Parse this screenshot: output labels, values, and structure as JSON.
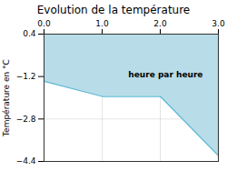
{
  "chart_data": {
    "type": "area",
    "title": "Evolution de la température",
    "ylabel": "Température en °C",
    "x": [
      0,
      1.0,
      2.0,
      3.0
    ],
    "series": [
      {
        "type": "area",
        "color": "#b8dce8",
        "fill_to": 0.4,
        "values": [
          -1.38,
          -1.95,
          -1.95,
          -4.18
        ]
      },
      {
        "type": "line",
        "color": "#5bb8d4",
        "values": [
          -1.38,
          -1.95,
          -1.95,
          -4.18
        ]
      }
    ],
    "xlim": [
      0,
      3
    ],
    "xticks": [
      0,
      1,
      2,
      3
    ],
    "ylim": [
      -4.4,
      0.4
    ],
    "yticks": [
      -4.4,
      -2.8,
      -1.2,
      0.4
    ],
    "grid": true,
    "annotations": [
      {
        "text": "heure par heure",
        "x": 1.45,
        "y": -1.0
      }
    ]
  }
}
